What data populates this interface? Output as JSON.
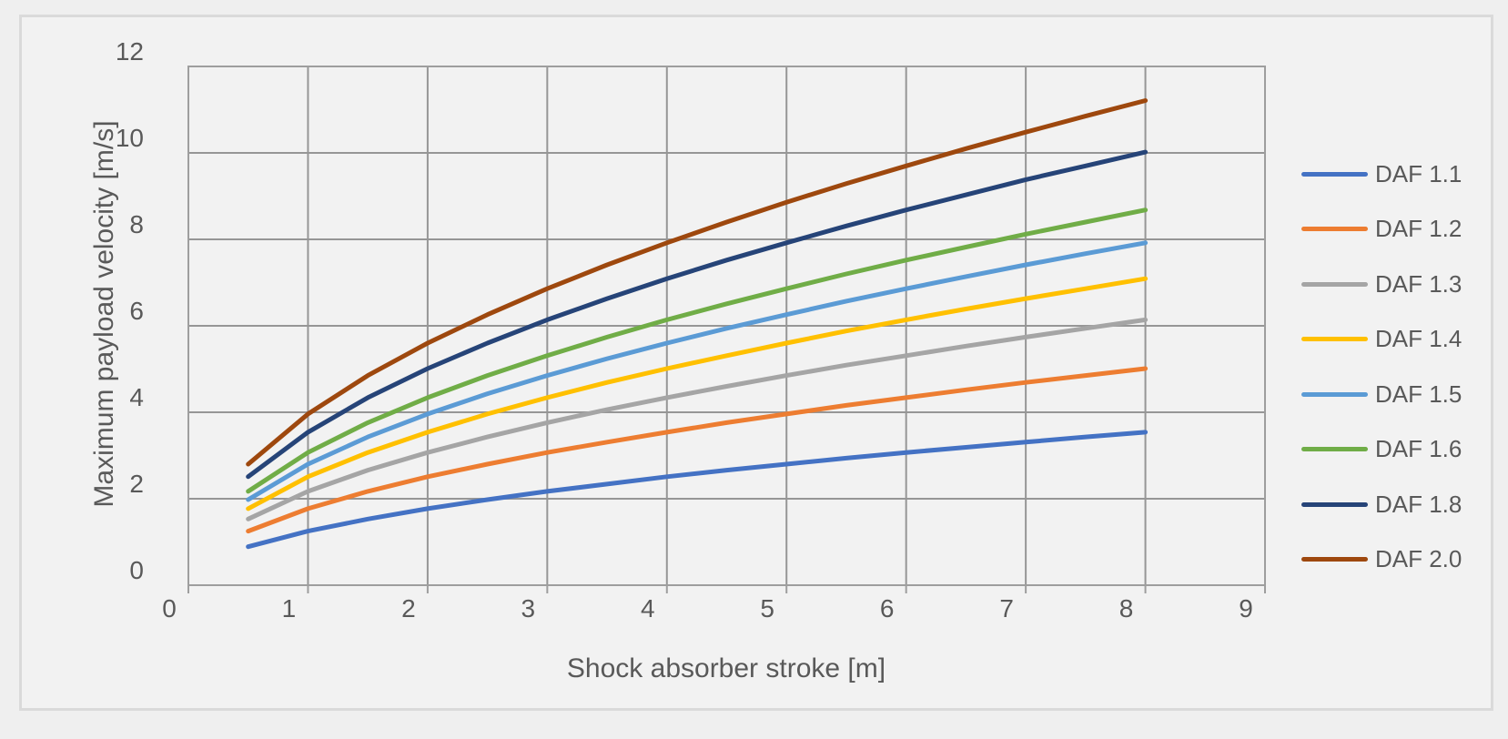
{
  "colors": {
    "page_background": "#efefef",
    "chart_background": "#f2f2f2",
    "chart_border": "#dadada",
    "gridline": "#969696",
    "axis_line": "#9e9e9e",
    "text": "#595959"
  },
  "chart_data": {
    "type": "line",
    "title": "",
    "xlabel": "Shock absorber stroke [m]",
    "ylabel": "Maximum payload velocity [m/s]",
    "xlim": [
      0,
      9
    ],
    "ylim": [
      0,
      12
    ],
    "x_ticks": [
      0,
      1,
      2,
      3,
      4,
      5,
      6,
      7,
      8,
      9
    ],
    "y_ticks": [
      0,
      2,
      4,
      6,
      8,
      10,
      12
    ],
    "grid": true,
    "legend_position": "right",
    "x": [
      0.5,
      1,
      1.5,
      2,
      2.5,
      3,
      3.5,
      4,
      4.5,
      5,
      5.5,
      6,
      6.5,
      7,
      7.5,
      8
    ],
    "series": [
      {
        "name": "DAF 1.1",
        "color": "#4472C4",
        "values": [
          0.89,
          1.25,
          1.53,
          1.77,
          1.98,
          2.17,
          2.34,
          2.51,
          2.66,
          2.8,
          2.94,
          3.07,
          3.19,
          3.31,
          3.43,
          3.54
        ]
      },
      {
        "name": "DAF 1.2",
        "color": "#ED7D31",
        "values": [
          1.25,
          1.77,
          2.17,
          2.51,
          2.8,
          3.07,
          3.31,
          3.54,
          3.76,
          3.96,
          4.16,
          4.34,
          4.52,
          4.69,
          4.85,
          5.01
        ]
      },
      {
        "name": "DAF 1.3",
        "color": "#A5A5A5",
        "values": [
          1.53,
          2.17,
          2.66,
          3.07,
          3.43,
          3.76,
          4.06,
          4.34,
          4.6,
          4.85,
          5.09,
          5.31,
          5.53,
          5.74,
          5.94,
          6.14
        ]
      },
      {
        "name": "DAF 1.4",
        "color": "#FFC000",
        "values": [
          1.77,
          2.51,
          3.07,
          3.54,
          3.96,
          4.34,
          4.69,
          5.01,
          5.31,
          5.6,
          5.88,
          6.14,
          6.39,
          6.63,
          6.86,
          7.09
        ]
      },
      {
        "name": "DAF 1.5",
        "color": "#5B9BD5",
        "values": [
          1.98,
          2.8,
          3.43,
          3.96,
          4.43,
          4.85,
          5.24,
          5.6,
          5.94,
          6.26,
          6.57,
          6.86,
          7.14,
          7.41,
          7.67,
          7.92
        ]
      },
      {
        "name": "DAF 1.6",
        "color": "#70AD47",
        "values": [
          2.17,
          3.07,
          3.76,
          4.34,
          4.85,
          5.31,
          5.74,
          6.14,
          6.51,
          6.86,
          7.2,
          7.52,
          7.82,
          8.12,
          8.4,
          8.68
        ]
      },
      {
        "name": "DAF 1.8",
        "color": "#264478",
        "values": [
          2.51,
          3.54,
          4.34,
          5.01,
          5.6,
          6.14,
          6.63,
          7.09,
          7.52,
          7.92,
          8.31,
          8.68,
          9.03,
          9.38,
          9.7,
          10.02
        ]
      },
      {
        "name": "DAF 2.0",
        "color": "#9E480E",
        "values": [
          2.8,
          3.96,
          4.85,
          5.6,
          6.26,
          6.86,
          7.41,
          7.92,
          8.4,
          8.86,
          9.29,
          9.7,
          10.1,
          10.48,
          10.85,
          11.21
        ]
      }
    ]
  }
}
